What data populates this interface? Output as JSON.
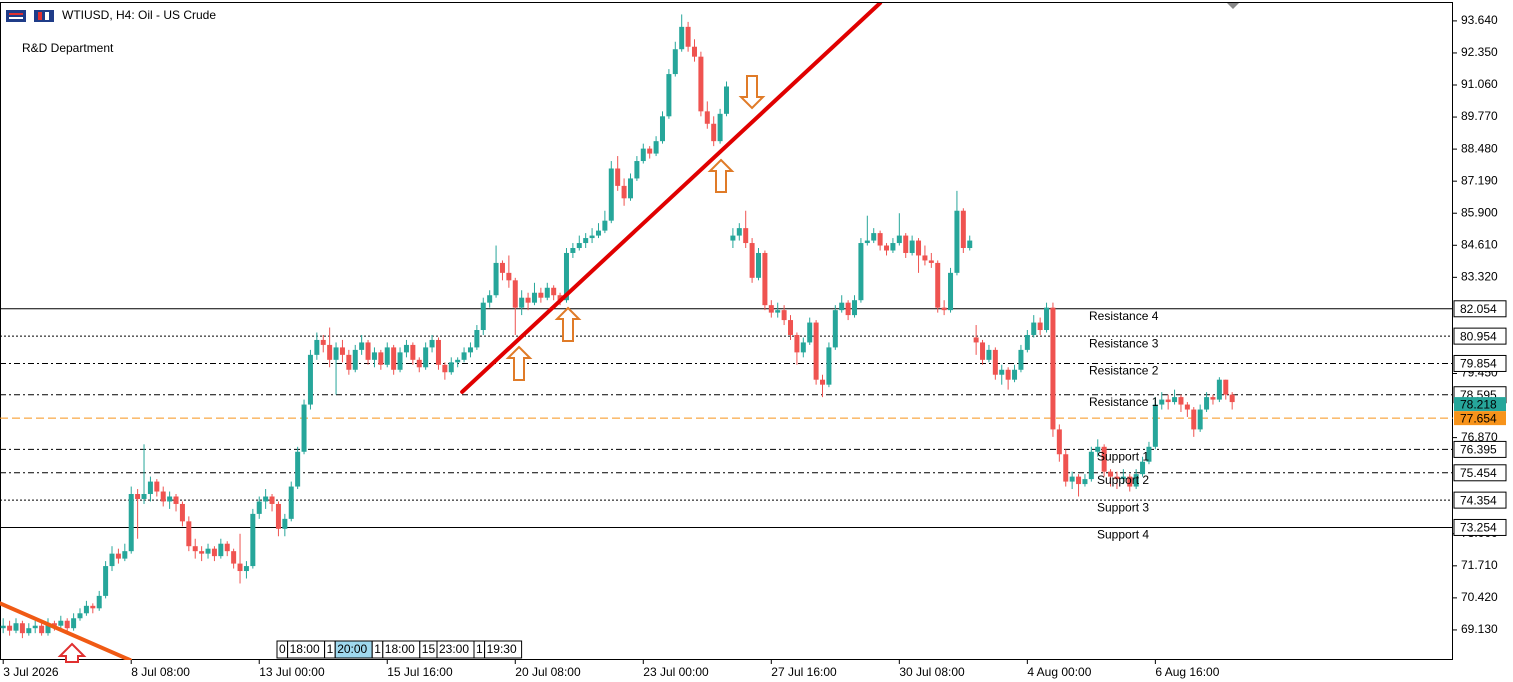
{
  "chart_data": {
    "type": "candlestick",
    "title": "WTIUSD, H4:  Oil - US Crude",
    "subtitle": "R&D Department",
    "up_color": "#26a69a",
    "down_color": "#ef5350",
    "ylim": [
      67.92,
      94.36
    ],
    "xlim": [
      -0.5,
      226.5
    ],
    "yticks": [
      {
        "value": 93.64,
        "label": "93.640"
      },
      {
        "value": 92.35,
        "label": "92.350"
      },
      {
        "value": 91.06,
        "label": "91.060"
      },
      {
        "value": 89.77,
        "label": "89.770"
      },
      {
        "value": 88.48,
        "label": "88.480"
      },
      {
        "value": 87.19,
        "label": "87.190"
      },
      {
        "value": 85.9,
        "label": "85.900"
      },
      {
        "value": 84.61,
        "label": "84.610"
      },
      {
        "value": 83.32,
        "label": "83.320"
      },
      {
        "value": 79.45,
        "label": "79.450"
      },
      {
        "value": 76.87,
        "label": "76.870"
      },
      {
        "value": 73.0,
        "label": "73.000"
      },
      {
        "value": 71.71,
        "label": "71.710"
      },
      {
        "value": 70.42,
        "label": "70.420"
      },
      {
        "value": 69.13,
        "label": "69.130"
      }
    ],
    "xticks": [
      {
        "value": 0,
        "label": "3 Jul 2026"
      },
      {
        "value": 20,
        "label": "8 Jul 08:00"
      },
      {
        "value": 40,
        "label": "13 Jul 00:00"
      },
      {
        "value": 60,
        "label": "15 Jul 16:00"
      },
      {
        "value": 80,
        "label": "20 Jul 08:00"
      },
      {
        "value": 100,
        "label": "23 Jul 00:00"
      },
      {
        "value": 120,
        "label": "27 Jul 16:00"
      },
      {
        "value": 140,
        "label": "30 Jul 08:00"
      },
      {
        "value": 160,
        "label": "4 Aug 00:00"
      },
      {
        "value": 180,
        "label": "6 Aug 16:00"
      }
    ],
    "levels": [
      {
        "name": "Resistance 4",
        "value": 82.054,
        "style": "solid"
      },
      {
        "name": "Resistance 3",
        "value": 80.954,
        "style": "dotted"
      },
      {
        "name": "Resistance 2",
        "value": 79.854,
        "style": "dashdot"
      },
      {
        "name": "Resistance 1",
        "value": 78.595,
        "style": "dashdot"
      },
      {
        "name": "Support 1",
        "value": 76.395,
        "style": "dashdot"
      },
      {
        "name": "Support 2",
        "value": 75.454,
        "style": "dashdot"
      },
      {
        "name": "Support 3",
        "value": 74.354,
        "style": "dotted"
      },
      {
        "name": "Support 4",
        "value": 73.254,
        "style": "solid"
      }
    ],
    "price_markers": [
      {
        "value": 78.218,
        "color": "#26a69a"
      },
      {
        "value": 77.654,
        "color": "#f7931a"
      }
    ],
    "trendlines": [
      {
        "color": "#e00000",
        "points": [
          [
            71.7,
            78.71
          ],
          [
            137,
            94.36
          ]
        ]
      },
      {
        "color": "#f05a14",
        "points": [
          [
            -0.5,
            70.2
          ],
          [
            19.8,
            67.92
          ]
        ]
      }
    ],
    "time_markers": [
      "0",
      "18:00",
      "1",
      "20:00",
      "1",
      "18:00",
      "15",
      "23:00",
      "1",
      "19:30"
    ],
    "ohlc": [
      [
        69.2,
        69.6,
        69.0,
        69.3
      ],
      [
        69.3,
        69.5,
        68.9,
        69.1
      ],
      [
        69.1,
        69.6,
        69.0,
        69.4
      ],
      [
        69.4,
        69.5,
        68.8,
        69.0
      ],
      [
        69.0,
        69.4,
        68.9,
        69.2
      ],
      [
        69.2,
        69.5,
        69.0,
        69.3
      ],
      [
        69.3,
        69.4,
        68.9,
        69.0
      ],
      [
        69.0,
        69.6,
        68.9,
        69.4
      ],
      [
        69.4,
        69.5,
        69.1,
        69.3
      ],
      [
        69.3,
        69.7,
        69.2,
        69.5
      ],
      [
        69.5,
        69.6,
        69.0,
        69.2
      ],
      [
        69.2,
        69.8,
        69.1,
        69.6
      ],
      [
        69.6,
        70.0,
        69.5,
        69.8
      ],
      [
        69.8,
        70.3,
        69.7,
        70.1
      ],
      [
        70.1,
        70.2,
        69.8,
        70.0
      ],
      [
        70.0,
        70.7,
        69.9,
        70.5
      ],
      [
        70.5,
        71.9,
        70.4,
        71.7
      ],
      [
        71.7,
        72.5,
        71.5,
        72.2
      ],
      [
        72.2,
        72.4,
        71.8,
        72.0
      ],
      [
        72.0,
        72.6,
        71.9,
        72.3
      ],
      [
        72.3,
        74.9,
        72.2,
        74.6
      ],
      [
        74.6,
        74.8,
        72.8,
        74.4
      ],
      [
        74.4,
        76.6,
        74.2,
        74.6
      ],
      [
        74.6,
        75.3,
        74.3,
        75.1
      ],
      [
        75.1,
        75.2,
        74.5,
        74.7
      ],
      [
        74.7,
        74.9,
        74.1,
        74.3
      ],
      [
        74.3,
        74.7,
        74.0,
        74.5
      ],
      [
        74.5,
        74.6,
        73.9,
        74.2
      ],
      [
        74.2,
        74.3,
        73.3,
        73.5
      ],
      [
        73.5,
        73.7,
        72.3,
        72.5
      ],
      [
        72.5,
        72.8,
        72.0,
        72.3
      ],
      [
        72.3,
        72.5,
        71.9,
        72.2
      ],
      [
        72.2,
        72.6,
        72.0,
        72.4
      ],
      [
        72.4,
        72.5,
        71.9,
        72.1
      ],
      [
        72.1,
        72.8,
        72.0,
        72.6
      ],
      [
        72.6,
        72.7,
        72.1,
        72.3
      ],
      [
        72.3,
        72.4,
        71.6,
        71.8
      ],
      [
        71.8,
        73.0,
        71.0,
        71.5
      ],
      [
        71.5,
        71.9,
        71.2,
        71.7
      ],
      [
        71.7,
        74.0,
        71.6,
        73.8
      ],
      [
        73.8,
        74.5,
        73.6,
        74.3
      ],
      [
        74.3,
        74.8,
        74.0,
        74.5
      ],
      [
        74.5,
        74.6,
        73.9,
        74.2
      ],
      [
        74.2,
        74.3,
        72.9,
        73.2
      ],
      [
        73.2,
        73.8,
        72.9,
        73.6
      ],
      [
        73.6,
        75.1,
        73.5,
        74.9
      ],
      [
        74.9,
        76.5,
        74.8,
        76.3
      ],
      [
        76.3,
        78.4,
        76.2,
        78.2
      ],
      [
        78.2,
        80.4,
        78.0,
        80.2
      ],
      [
        80.2,
        81.1,
        80.0,
        80.8
      ],
      [
        80.8,
        81.0,
        80.3,
        80.6
      ],
      [
        80.6,
        81.3,
        79.7,
        80.0
      ],
      [
        80.0,
        80.7,
        78.6,
        80.5
      ],
      [
        80.5,
        80.8,
        79.9,
        80.2
      ],
      [
        80.2,
        80.4,
        79.4,
        79.6
      ],
      [
        79.6,
        80.6,
        79.5,
        80.4
      ],
      [
        80.4,
        81.0,
        80.2,
        80.7
      ],
      [
        80.7,
        80.8,
        79.8,
        80.0
      ],
      [
        80.0,
        80.5,
        79.7,
        80.3
      ],
      [
        80.3,
        80.4,
        79.6,
        79.8
      ],
      [
        79.8,
        80.7,
        79.7,
        80.5
      ],
      [
        80.5,
        80.6,
        79.4,
        79.6
      ],
      [
        79.6,
        80.5,
        79.5,
        80.3
      ],
      [
        80.3,
        80.8,
        80.1,
        80.6
      ],
      [
        80.6,
        80.7,
        79.8,
        80.0
      ],
      [
        80.0,
        80.1,
        79.5,
        79.7
      ],
      [
        79.7,
        80.7,
        79.6,
        80.5
      ],
      [
        80.5,
        81.0,
        80.3,
        80.8
      ],
      [
        80.8,
        80.9,
        79.6,
        79.8
      ],
      [
        79.8,
        79.9,
        79.2,
        79.5
      ],
      [
        79.5,
        80.1,
        79.4,
        79.9
      ],
      [
        79.9,
        80.1,
        79.7,
        80.0
      ],
      [
        80.0,
        80.5,
        79.9,
        80.3
      ],
      [
        80.3,
        80.7,
        80.1,
        80.5
      ],
      [
        80.5,
        81.4,
        80.4,
        81.2
      ],
      [
        81.2,
        82.5,
        81.0,
        82.3
      ],
      [
        82.3,
        82.8,
        82.1,
        82.6
      ],
      [
        82.6,
        84.6,
        82.5,
        83.9
      ],
      [
        83.9,
        84.0,
        83.2,
        83.5
      ],
      [
        83.5,
        84.2,
        82.9,
        83.2
      ],
      [
        83.2,
        83.3,
        81.0,
        82.1
      ],
      [
        82.1,
        82.8,
        81.8,
        82.5
      ],
      [
        82.5,
        82.7,
        82.0,
        82.3
      ],
      [
        82.3,
        83.1,
        82.2,
        82.7
      ],
      [
        82.7,
        82.9,
        82.3,
        82.5
      ],
      [
        82.5,
        83.1,
        82.4,
        82.9
      ],
      [
        82.9,
        83.0,
        82.4,
        82.6
      ],
      [
        82.6,
        82.7,
        82.2,
        82.4
      ],
      [
        82.4,
        84.5,
        82.3,
        84.3
      ],
      [
        84.3,
        84.7,
        84.1,
        84.5
      ],
      [
        84.5,
        85.0,
        84.4,
        84.7
      ],
      [
        84.7,
        85.1,
        84.5,
        84.9
      ],
      [
        84.9,
        85.3,
        84.7,
        85.0
      ],
      [
        85.0,
        85.5,
        84.9,
        85.2
      ],
      [
        85.2,
        86.0,
        85.1,
        85.6
      ],
      [
        85.6,
        88.0,
        85.5,
        87.7
      ],
      [
        87.7,
        88.2,
        86.8,
        87.0
      ],
      [
        87.0,
        87.3,
        86.2,
        86.5
      ],
      [
        86.5,
        87.5,
        86.4,
        87.3
      ],
      [
        87.3,
        88.2,
        87.2,
        88.0
      ],
      [
        88.0,
        88.7,
        87.9,
        88.5
      ],
      [
        88.5,
        88.6,
        88.1,
        88.3
      ],
      [
        88.3,
        89.0,
        88.2,
        88.8
      ],
      [
        88.8,
        90.0,
        88.7,
        89.8
      ],
      [
        89.8,
        91.7,
        89.7,
        91.5
      ],
      [
        91.5,
        92.8,
        91.4,
        92.5
      ],
      [
        92.5,
        93.9,
        92.4,
        93.4
      ],
      [
        93.4,
        93.6,
        92.4,
        92.6
      ],
      [
        92.6,
        92.9,
        92.0,
        92.2
      ],
      [
        92.2,
        92.4,
        89.8,
        90.0
      ],
      [
        90.0,
        90.4,
        89.3,
        89.5
      ],
      [
        89.5,
        89.8,
        88.6,
        88.8
      ],
      [
        88.8,
        90.1,
        88.7,
        89.9
      ],
      [
        89.9,
        91.2,
        89.8,
        91.0
      ],
      [
        84.8,
        85.3,
        84.5,
        85.0
      ],
      [
        85.0,
        85.5,
        84.8,
        85.3
      ],
      [
        85.3,
        86.0,
        84.5,
        84.7
      ],
      [
        84.7,
        84.9,
        83.1,
        83.3
      ],
      [
        83.3,
        84.5,
        83.2,
        84.3
      ],
      [
        84.3,
        84.4,
        82.0,
        82.2
      ],
      [
        82.2,
        82.4,
        81.7,
        81.9
      ],
      [
        81.9,
        82.3,
        81.7,
        82.0
      ],
      [
        82.0,
        82.2,
        81.4,
        81.6
      ],
      [
        81.6,
        81.8,
        80.8,
        81.0
      ],
      [
        81.0,
        81.1,
        79.8,
        80.3
      ],
      [
        80.3,
        80.9,
        80.1,
        80.7
      ],
      [
        80.7,
        81.7,
        80.6,
        81.5
      ],
      [
        81.5,
        81.6,
        79.0,
        79.2
      ],
      [
        79.2,
        79.4,
        78.5,
        79.0
      ],
      [
        79.0,
        80.7,
        78.9,
        80.5
      ],
      [
        80.5,
        82.2,
        80.4,
        82.0
      ],
      [
        82.0,
        82.6,
        81.9,
        82.3
      ],
      [
        82.3,
        82.4,
        81.6,
        81.8
      ],
      [
        81.8,
        82.6,
        81.7,
        82.4
      ],
      [
        82.4,
        84.9,
        82.3,
        84.7
      ],
      [
        84.7,
        85.8,
        84.6,
        84.8
      ],
      [
        84.8,
        85.3,
        84.7,
        85.1
      ],
      [
        85.1,
        85.2,
        84.4,
        84.6
      ],
      [
        84.6,
        84.7,
        84.2,
        84.4
      ],
      [
        84.4,
        84.9,
        84.3,
        84.7
      ],
      [
        84.7,
        85.9,
        84.6,
        85.0
      ],
      [
        85.0,
        85.1,
        84.1,
        84.3
      ],
      [
        84.3,
        85.0,
        84.2,
        84.8
      ],
      [
        84.8,
        84.9,
        83.5,
        84.2
      ],
      [
        84.2,
        84.6,
        83.8,
        84.0
      ],
      [
        84.0,
        84.3,
        83.7,
        83.9
      ],
      [
        83.9,
        84.0,
        81.9,
        82.1
      ],
      [
        82.1,
        82.4,
        81.8,
        82.0
      ],
      [
        82.0,
        83.7,
        81.9,
        83.5
      ],
      [
        83.5,
        86.8,
        83.4,
        86.0
      ],
      [
        86.0,
        86.1,
        84.3,
        84.5
      ],
      [
        84.5,
        85.0,
        84.4,
        84.8
      ],
      [
        80.9,
        81.4,
        80.2,
        80.7
      ],
      [
        80.7,
        80.8,
        79.8,
        80.0
      ],
      [
        80.0,
        80.6,
        79.9,
        80.4
      ],
      [
        80.4,
        80.5,
        79.2,
        79.4
      ],
      [
        79.4,
        79.8,
        79.0,
        79.6
      ],
      [
        79.6,
        79.7,
        78.8,
        79.2
      ],
      [
        79.2,
        79.8,
        79.1,
        79.6
      ],
      [
        79.6,
        80.6,
        79.5,
        80.4
      ],
      [
        80.4,
        81.2,
        80.3,
        81.0
      ],
      [
        81.0,
        81.8,
        80.9,
        81.5
      ],
      [
        81.5,
        81.7,
        81.0,
        81.2
      ],
      [
        81.2,
        82.3,
        81.1,
        82.1
      ],
      [
        82.1,
        82.3,
        76.9,
        77.2
      ],
      [
        77.2,
        77.4,
        75.9,
        76.2
      ],
      [
        76.2,
        76.4,
        74.9,
        75.1
      ],
      [
        75.1,
        75.5,
        74.8,
        75.3
      ],
      [
        75.3,
        75.4,
        74.5,
        75.0
      ],
      [
        75.0,
        75.4,
        74.9,
        75.2
      ],
      [
        75.2,
        76.5,
        75.1,
        76.3
      ],
      [
        76.3,
        76.8,
        76.1,
        76.5
      ],
      [
        76.5,
        76.6,
        75.3,
        75.5
      ],
      [
        75.5,
        75.6,
        74.9,
        75.3
      ],
      [
        75.3,
        75.5,
        74.8,
        75.2
      ],
      [
        75.2,
        75.6,
        75.0,
        75.3
      ],
      [
        75.3,
        75.4,
        74.7,
        74.9
      ],
      [
        74.9,
        75.6,
        74.8,
        75.4
      ],
      [
        75.4,
        76.1,
        75.3,
        75.9
      ],
      [
        75.9,
        76.7,
        75.8,
        76.5
      ],
      [
        76.5,
        78.5,
        76.4,
        78.2
      ],
      [
        78.2,
        78.7,
        78.0,
        78.4
      ],
      [
        78.4,
        78.6,
        78.0,
        78.3
      ],
      [
        78.3,
        78.8,
        78.2,
        78.5
      ],
      [
        78.5,
        78.6,
        77.9,
        78.2
      ],
      [
        78.2,
        78.3,
        77.7,
        78.0
      ],
      [
        78.0,
        78.1,
        76.9,
        77.2
      ],
      [
        77.2,
        78.2,
        77.1,
        78.0
      ],
      [
        78.0,
        78.7,
        77.9,
        78.5
      ],
      [
        78.5,
        78.6,
        78.2,
        78.4
      ],
      [
        78.4,
        79.3,
        78.3,
        79.2
      ],
      [
        79.2,
        79.2,
        78.4,
        78.6
      ],
      [
        78.6,
        78.7,
        78.0,
        78.3
      ]
    ]
  }
}
